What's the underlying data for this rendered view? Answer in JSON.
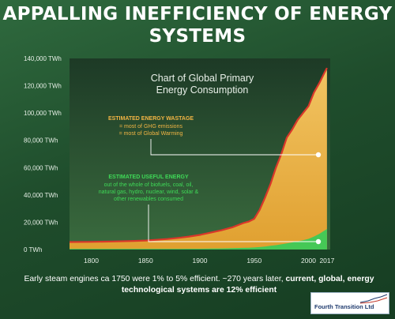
{
  "headline": {
    "line1": "APPALLING INEFFICIENCY OF ENERGY",
    "line2": "SYSTEMS"
  },
  "caption": {
    "text_start": "Early steam engines ca 1750 were 1% to 5% efficient. ~270 years later, ",
    "text_bold1": "current, global, energy",
    "text_bold2": "technological systems are 12% efficient"
  },
  "logo": {
    "text": "Fourth Transition Ltd"
  },
  "colors": {
    "wastage": "#e9a838",
    "wastage_top": "#f2c462",
    "useful": "#45c856",
    "edge": "#d9372a",
    "plot_bg_top": "#1d3a26",
    "plot_bg_bottom": "#3a6b3e"
  },
  "chart_data": {
    "type": "area",
    "title_line1": "Chart of Global Primary",
    "title_line2": "Energy Consumption",
    "x_ticks": [
      "1800",
      "1850",
      "1900",
      "1950",
      "2000",
      "2017"
    ],
    "y_ticks": [
      "0 TWh",
      "20,000 TWh",
      "40,000 TWh",
      "60,000 TWh",
      "80,000 TWh",
      "100,000 TWh",
      "120,000 TWh",
      "140,000 TWh"
    ],
    "xlim": [
      1780,
      2020
    ],
    "ylim": [
      0,
      140000
    ],
    "x": [
      1780,
      1800,
      1820,
      1840,
      1850,
      1860,
      1870,
      1880,
      1890,
      1900,
      1910,
      1920,
      1930,
      1940,
      1945,
      1950,
      1955,
      1960,
      1965,
      1970,
      1975,
      1980,
      1985,
      1990,
      1995,
      2000,
      2005,
      2010,
      2015,
      2017
    ],
    "series": [
      {
        "name": "ESTIMATED ENERGY WASTAGE",
        "values": [
          5500,
          5600,
          5900,
          6300,
          6600,
          7100,
          7700,
          8500,
          9500,
          10700,
          12400,
          14100,
          16300,
          19400,
          20500,
          22500,
          29000,
          38000,
          48000,
          60000,
          70000,
          82000,
          88000,
          95000,
          100000,
          105000,
          115000,
          122000,
          130000,
          133000
        ]
      },
      {
        "name": "ESTIMATED USEFUL ENERGY",
        "values": [
          500,
          500,
          500,
          500,
          500,
          500,
          500,
          500,
          600,
          600,
          700,
          800,
          1000,
          1200,
          1300,
          1500,
          1800,
          2200,
          2700,
          3200,
          3800,
          4500,
          5200,
          6000,
          6800,
          7800,
          9500,
          11500,
          14000,
          15000
        ]
      }
    ],
    "annotations": {
      "wastage": {
        "title": "ESTIMATED ENERGY WASTAGE",
        "line1": "= most of GHG emissions",
        "line2": "= most of Global Warming"
      },
      "useful": {
        "title": "ESTIMATED USEFUL ENERGY",
        "line1": "out of the whole of biofuels, coal, oil,",
        "line2": "natural gas, hydro, nuclear, wind, solar &",
        "line3": "other renewables consumed"
      }
    }
  }
}
